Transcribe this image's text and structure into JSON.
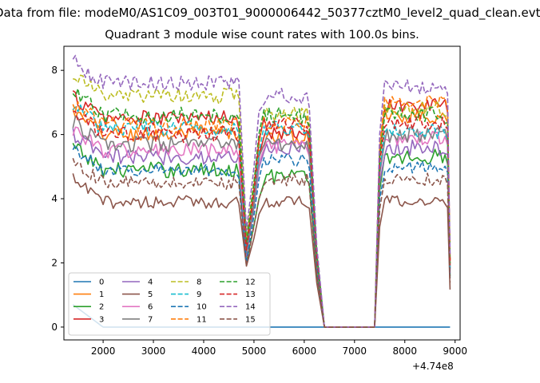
{
  "chart_data": {
    "type": "line",
    "suptitle": "Data from file: modeM0/AS1C09_003T01_9000006442_50377cztM0_level2_quad_clean.evt",
    "title": "Quadrant 3 module wise count rates with 100.0s bins.",
    "xlabel": "",
    "ylabel": "",
    "x_offset_label": "+4.74e8",
    "xlim": [
      1220,
      9100
    ],
    "ylim": [
      -0.4,
      8.75
    ],
    "xticks": [
      2000,
      3000,
      4000,
      5000,
      6000,
      7000,
      8000,
      9000
    ],
    "yticks": [
      0,
      2,
      4,
      6,
      8
    ],
    "grid": false,
    "legend": {
      "placement": "lower-left",
      "columns": 4
    },
    "x_segments": {
      "active_1": [
        1400,
        4700
      ],
      "dip": [
        4700,
        5200
      ],
      "active_2": [
        5200,
        6100
      ],
      "dropoff": [
        6100,
        6400
      ],
      "gap": [
        6400,
        7400
      ],
      "rise": [
        7400,
        7600
      ],
      "active_3": [
        7600,
        8900
      ]
    },
    "series": [
      {
        "name": "0",
        "color": "#1f77b4",
        "dash": "solid",
        "level_1": 0.0,
        "level_2": 0.0,
        "level_3": 0.0,
        "dip_min": 0.0,
        "noise": 0.0
      },
      {
        "name": "1",
        "color": "#ff7f0e",
        "dash": "solid",
        "level_1": 6.0,
        "level_2": 5.9,
        "level_3": 6.6,
        "dip_min": 2.3,
        "noise": 0.25
      },
      {
        "name": "2",
        "color": "#2ca02c",
        "dash": "solid",
        "level_1": 4.9,
        "level_2": 4.7,
        "level_3": 5.3,
        "dip_min": 2.0,
        "noise": 0.25
      },
      {
        "name": "3",
        "color": "#d62728",
        "dash": "solid",
        "level_1": 6.5,
        "level_2": 6.1,
        "level_3": 6.9,
        "dip_min": 2.6,
        "noise": 0.25
      },
      {
        "name": "4",
        "color": "#9467bd",
        "dash": "solid",
        "level_1": 5.3,
        "level_2": 5.6,
        "level_3": 5.6,
        "dip_min": 2.2,
        "noise": 0.25
      },
      {
        "name": "5",
        "color": "#8c564b",
        "dash": "solid",
        "level_1": 3.9,
        "level_2": 3.9,
        "level_3": 3.9,
        "dip_min": 1.9,
        "noise": 0.2
      },
      {
        "name": "6",
        "color": "#e377c2",
        "dash": "solid",
        "level_1": 5.5,
        "level_2": 5.6,
        "level_3": 5.9,
        "dip_min": 2.3,
        "noise": 0.25
      },
      {
        "name": "7",
        "color": "#7f7f7f",
        "dash": "solid",
        "level_1": 5.7,
        "level_2": 5.7,
        "level_3": 6.0,
        "dip_min": 2.3,
        "noise": 0.25
      },
      {
        "name": "8",
        "color": "#bcbd22",
        "dash": "dashed",
        "level_1": 7.2,
        "level_2": 6.6,
        "level_3": 6.8,
        "dip_min": 2.8,
        "noise": 0.25
      },
      {
        "name": "9",
        "color": "#17becf",
        "dash": "dashed",
        "level_1": 6.2,
        "level_2": 6.2,
        "level_3": 6.1,
        "dip_min": 2.5,
        "noise": 0.25
      },
      {
        "name": "10",
        "color": "#1f77b4",
        "dash": "dashed",
        "level_1": 4.9,
        "level_2": 5.2,
        "level_3": 5.0,
        "dip_min": 2.0,
        "noise": 0.2
      },
      {
        "name": "11",
        "color": "#ff7f0e",
        "dash": "dashed",
        "level_1": 6.3,
        "level_2": 6.4,
        "level_3": 7.0,
        "dip_min": 2.6,
        "noise": 0.25
      },
      {
        "name": "12",
        "color": "#2ca02c",
        "dash": "dashed",
        "level_1": 6.6,
        "level_2": 6.6,
        "level_3": 6.6,
        "dip_min": 2.6,
        "noise": 0.25
      },
      {
        "name": "13",
        "color": "#d62728",
        "dash": "dashed",
        "level_1": 6.0,
        "level_2": 6.3,
        "level_3": 6.4,
        "dip_min": 2.4,
        "noise": 0.25
      },
      {
        "name": "14",
        "color": "#9467bd",
        "dash": "dashed",
        "level_1": 7.6,
        "level_2": 7.2,
        "level_3": 7.5,
        "dip_min": 3.0,
        "noise": 0.25
      },
      {
        "name": "15",
        "color": "#8c564b",
        "dash": "dashed",
        "level_1": 4.5,
        "level_2": 4.6,
        "level_3": 4.6,
        "dip_min": 1.9,
        "noise": 0.2
      }
    ]
  }
}
